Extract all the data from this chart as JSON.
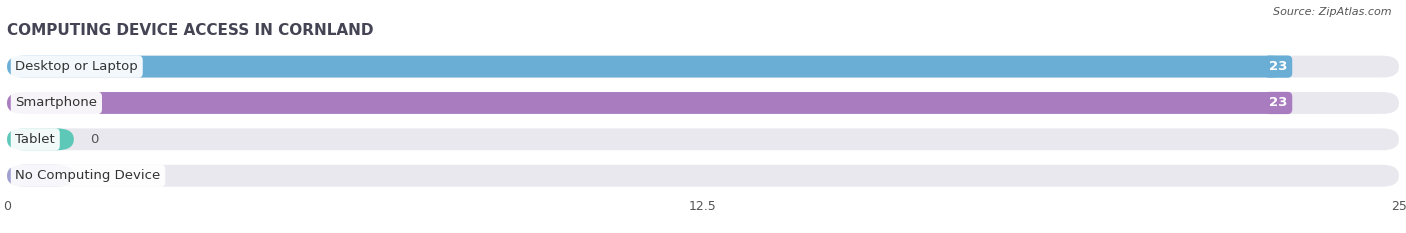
{
  "title": "COMPUTING DEVICE ACCESS IN CORNLAND",
  "source": "Source: ZipAtlas.com",
  "categories": [
    "Desktop or Laptop",
    "Smartphone",
    "Tablet",
    "No Computing Device"
  ],
  "values": [
    23,
    23,
    0,
    0
  ],
  "bar_colors": [
    "#6aaed6",
    "#a97bbf",
    "#5ec8b8",
    "#a0a0d0"
  ],
  "xlim": [
    0,
    25
  ],
  "xticks": [
    0,
    12.5,
    25
  ],
  "xtick_labels": [
    "0",
    "12.5",
    "25"
  ],
  "background_color": "#ffffff",
  "bar_bg_color": "#e8e8ee",
  "label_fontsize": 9.5,
  "title_fontsize": 11,
  "value_label_color": "#ffffff",
  "value_label_color_outside": "#555555",
  "bar_height": 0.6,
  "zero_bar_width": 1.2
}
